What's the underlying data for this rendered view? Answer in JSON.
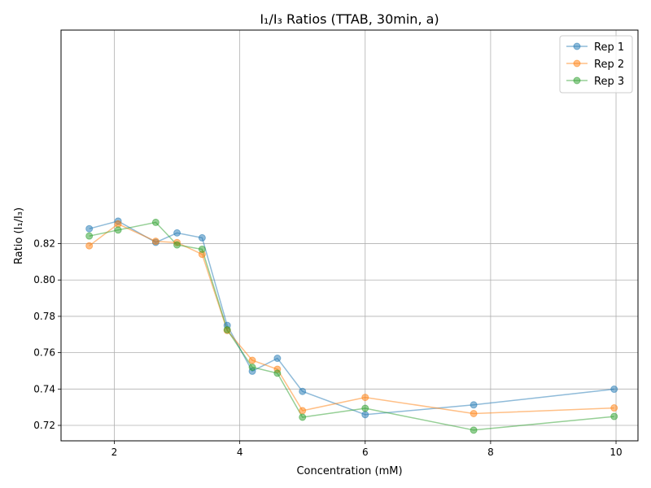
{
  "chart_data": {
    "type": "line",
    "title": "I₁/I₃ Ratios (TTAB, 30min, a)",
    "xlabel": "Concentration (mM)",
    "ylabel": "Ratio (I₁/I₃)",
    "xlim": [
      1.15,
      10.35
    ],
    "ylim": [
      0.7115,
      0.9375
    ],
    "xticks": [
      2,
      4,
      6,
      8,
      10
    ],
    "yticks": [
      0.72,
      0.74,
      0.76,
      0.78,
      0.8,
      0.82
    ],
    "ytick_labels": [
      "0.72",
      "0.74",
      "0.76",
      "0.78",
      "0.80",
      "0.82"
    ],
    "grid": true,
    "legend_position": "top-right",
    "series": [
      {
        "name": "Rep 1",
        "color": "#1f77b4",
        "points": [
          [
            1.6,
            0.8282
          ],
          [
            2.06,
            0.8324
          ],
          [
            2.66,
            0.8207
          ],
          [
            3.0,
            0.8259
          ],
          [
            3.4,
            0.8232
          ],
          [
            3.8,
            0.775
          ],
          [
            4.2,
            0.7498
          ],
          [
            4.6,
            0.7569
          ],
          [
            5.0,
            0.7387
          ],
          [
            6.0,
            0.7259
          ],
          [
            7.73,
            0.7313
          ],
          [
            9.97,
            0.7399
          ]
        ]
      },
      {
        "name": "Rep 2",
        "color": "#ff7f0e",
        "points": [
          [
            1.6,
            0.8188
          ],
          [
            2.06,
            0.8308
          ],
          [
            2.66,
            0.8213
          ],
          [
            3.0,
            0.8206
          ],
          [
            3.4,
            0.8141
          ],
          [
            3.8,
            0.7722
          ],
          [
            4.2,
            0.7558
          ],
          [
            4.6,
            0.7509
          ],
          [
            5.0,
            0.7281
          ],
          [
            6.0,
            0.7354
          ],
          [
            7.73,
            0.7265
          ],
          [
            9.97,
            0.7296
          ]
        ]
      },
      {
        "name": "Rep 3",
        "color": "#2ca02c",
        "points": [
          [
            1.6,
            0.8242
          ],
          [
            2.06,
            0.8275
          ],
          [
            2.66,
            0.8317
          ],
          [
            3.0,
            0.8193
          ],
          [
            3.4,
            0.8169
          ],
          [
            3.8,
            0.7726
          ],
          [
            4.2,
            0.752
          ],
          [
            4.6,
            0.7487
          ],
          [
            5.0,
            0.7245
          ],
          [
            6.0,
            0.7294
          ],
          [
            7.73,
            0.7174
          ],
          [
            9.97,
            0.7249
          ]
        ]
      }
    ]
  }
}
